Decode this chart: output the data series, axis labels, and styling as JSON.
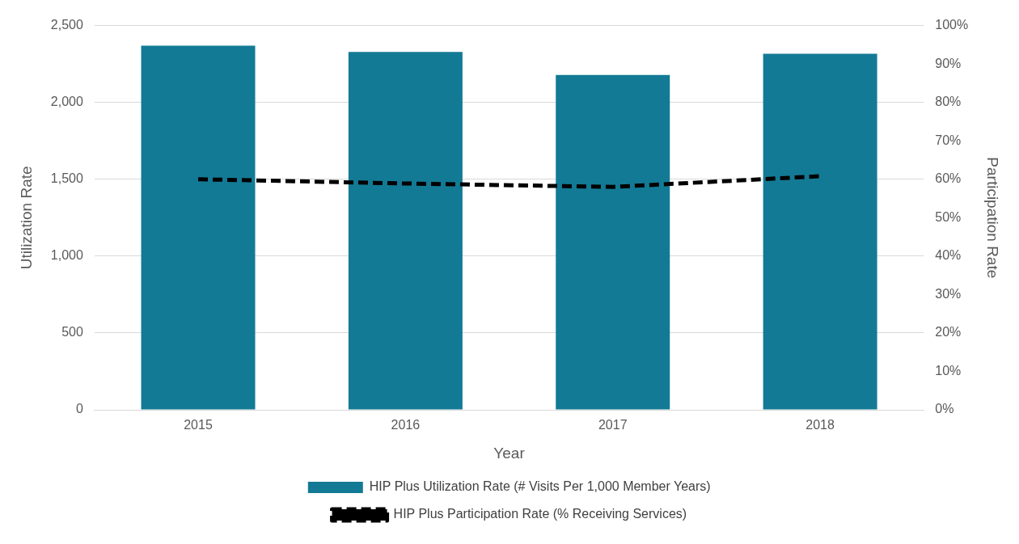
{
  "chart_data": {
    "type": "bar",
    "categories": [
      "2015",
      "2016",
      "2017",
      "2018"
    ],
    "xlabel": "Year",
    "ylabel": "Utilization Rate",
    "y2label": "Participation Rate",
    "series": [
      {
        "name": "HIP Plus Utilization Rate (# Visits Per 1,000 Member Years)",
        "color": "#137a95",
        "values": [
          2369,
          2328,
          2179,
          2316
        ]
      },
      {
        "name": "HIP Plus Participation Rate (% Receiving Services)",
        "type": "line",
        "axis": "y2",
        "color": "#000000",
        "line_style": "dashed",
        "values": [
          60,
          58.9,
          58,
          60.8
        ]
      }
    ],
    "ylim": [
      0,
      2500
    ],
    "yticks": [
      0,
      {
        "value": 500,
        "label": "500"
      },
      {
        "value": 1000,
        "label": "1,000"
      },
      {
        "value": 1500,
        "label": "1,500"
      },
      {
        "value": 2000,
        "label": "2,000"
      },
      {
        "value": 2500,
        "label": "2,500"
      }
    ],
    "y2lim": [
      0,
      100
    ],
    "y2ticks": [
      {
        "value": 0,
        "label": "0%"
      },
      {
        "value": 10,
        "label": "10%"
      },
      {
        "value": 20,
        "label": "20%"
      },
      {
        "value": 30,
        "label": "30%"
      },
      {
        "value": 40,
        "label": "40%"
      },
      {
        "value": 50,
        "label": "50%"
      },
      {
        "value": 60,
        "label": "60%"
      },
      {
        "value": 70,
        "label": "70%"
      },
      {
        "value": 80,
        "label": "80%"
      },
      {
        "value": 90,
        "label": "90%"
      },
      {
        "value": 100,
        "label": "100%"
      }
    ],
    "grid": "y",
    "legend": "bottom",
    "marker": "none"
  }
}
